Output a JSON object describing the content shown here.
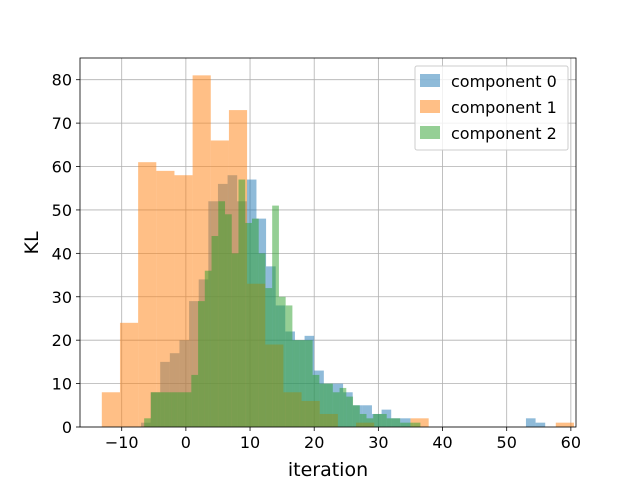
{
  "chart_data": {
    "type": "histogram",
    "xlabel": "iteration",
    "ylabel": "KL",
    "xlim": [
      -16.5,
      60.8
    ],
    "ylim": [
      0,
      85
    ],
    "xticks": [
      -10,
      0,
      10,
      20,
      30,
      40,
      50,
      60
    ],
    "yticks": [
      0,
      10,
      20,
      30,
      40,
      50,
      60,
      70,
      80
    ],
    "grid": true,
    "legend_position": "top-right",
    "series": [
      {
        "name": "component 0",
        "color": "#1f77b4",
        "bin_start": -7.0,
        "bin_width": 1.5,
        "counts": [
          1,
          8,
          15,
          17,
          20,
          29,
          34,
          52,
          56,
          58,
          52,
          57,
          48,
          37,
          28,
          22,
          20,
          21,
          13,
          10,
          10,
          8,
          5,
          5,
          3,
          4,
          2,
          2,
          0,
          0,
          0,
          0,
          0,
          0,
          0,
          0,
          0,
          0,
          0,
          0,
          2,
          1
        ]
      },
      {
        "name": "component 1",
        "color": "#ff7f0e",
        "bin_start": -13.1,
        "bin_width": 2.83,
        "counts": [
          8,
          24,
          61,
          59,
          58,
          81,
          66,
          73,
          33,
          19,
          8,
          6,
          3,
          0,
          1,
          0,
          0,
          2,
          0,
          0,
          0,
          0,
          0,
          0,
          0,
          1
        ]
      },
      {
        "name": "component 2",
        "color": "#2ca02c",
        "bin_start": -6.5,
        "bin_width": 1.05,
        "counts": [
          2,
          8,
          8,
          8,
          8,
          8,
          8,
          12,
          29,
          36,
          44,
          52,
          49,
          40,
          57,
          47,
          48,
          40,
          32,
          51,
          30,
          28,
          20,
          20,
          20,
          12,
          10,
          10,
          8,
          9,
          7,
          5,
          3,
          2,
          3,
          3,
          2,
          2,
          1,
          1,
          1
        ]
      }
    ]
  }
}
